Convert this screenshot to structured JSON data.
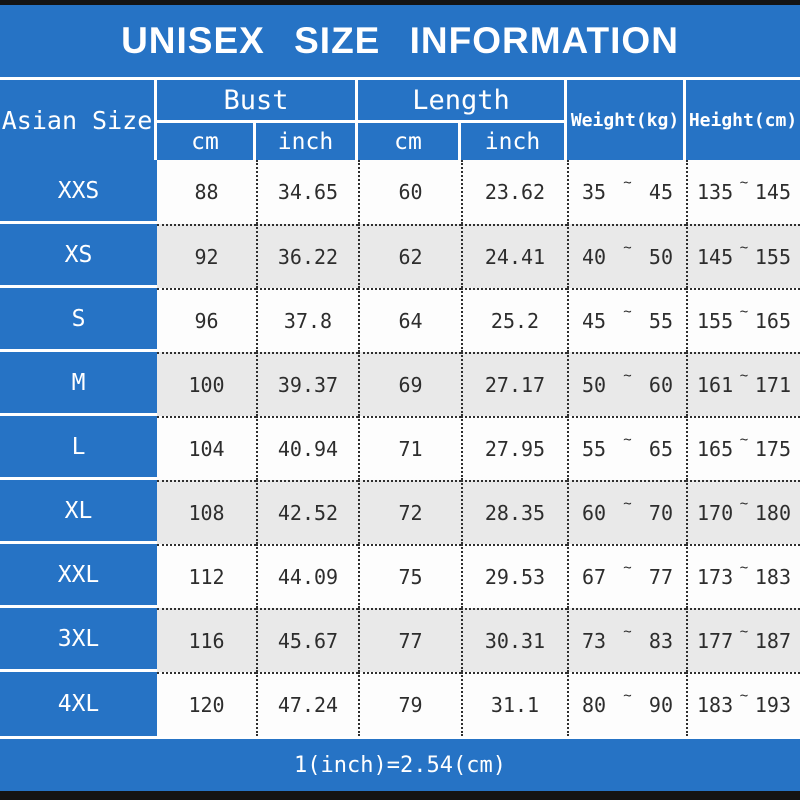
{
  "title": "UNISEX SIZE INFORMATION",
  "footer_note": "1(inch)=2.54(cm)",
  "colors": {
    "accent_blue": "#2673c5",
    "row_alt_gray": "#e9e9e9",
    "row_white": "#fdfdfd",
    "bar_black": "#141414",
    "text_dark": "#2d2d2d"
  },
  "table": {
    "size_header": "Asian Size",
    "group_headers": {
      "bust": "Bust",
      "length": "Length"
    },
    "sub_headers": {
      "bust_cm": "cm",
      "bust_inch": "inch",
      "length_cm": "cm",
      "length_inch": "inch"
    },
    "single_headers": {
      "weight": "Weight(kg)",
      "height": "Height(cm)"
    },
    "tilde": "~",
    "rows": [
      {
        "size": "XXS",
        "bust_cm": "88",
        "bust_inch": "34.65",
        "len_cm": "60",
        "len_inch": "23.62",
        "w_min": "35",
        "w_max": "45",
        "h_min": "135",
        "h_max": "145"
      },
      {
        "size": "XS",
        "bust_cm": "92",
        "bust_inch": "36.22",
        "len_cm": "62",
        "len_inch": "24.41",
        "w_min": "40",
        "w_max": "50",
        "h_min": "145",
        "h_max": "155"
      },
      {
        "size": "S",
        "bust_cm": "96",
        "bust_inch": "37.8",
        "len_cm": "64",
        "len_inch": "25.2",
        "w_min": "45",
        "w_max": "55",
        "h_min": "155",
        "h_max": "165"
      },
      {
        "size": "M",
        "bust_cm": "100",
        "bust_inch": "39.37",
        "len_cm": "69",
        "len_inch": "27.17",
        "w_min": "50",
        "w_max": "60",
        "h_min": "161",
        "h_max": "171"
      },
      {
        "size": "L",
        "bust_cm": "104",
        "bust_inch": "40.94",
        "len_cm": "71",
        "len_inch": "27.95",
        "w_min": "55",
        "w_max": "65",
        "h_min": "165",
        "h_max": "175"
      },
      {
        "size": "XL",
        "bust_cm": "108",
        "bust_inch": "42.52",
        "len_cm": "72",
        "len_inch": "28.35",
        "w_min": "60",
        "w_max": "70",
        "h_min": "170",
        "h_max": "180"
      },
      {
        "size": "XXL",
        "bust_cm": "112",
        "bust_inch": "44.09",
        "len_cm": "75",
        "len_inch": "29.53",
        "w_min": "67",
        "w_max": "77",
        "h_min": "173",
        "h_max": "183"
      },
      {
        "size": "3XL",
        "bust_cm": "116",
        "bust_inch": "45.67",
        "len_cm": "77",
        "len_inch": "30.31",
        "w_min": "73",
        "w_max": "83",
        "h_min": "177",
        "h_max": "187"
      },
      {
        "size": "4XL",
        "bust_cm": "120",
        "bust_inch": "47.24",
        "len_cm": "79",
        "len_inch": "31.1",
        "w_min": "80",
        "w_max": "90",
        "h_min": "183",
        "h_max": "193"
      }
    ]
  }
}
